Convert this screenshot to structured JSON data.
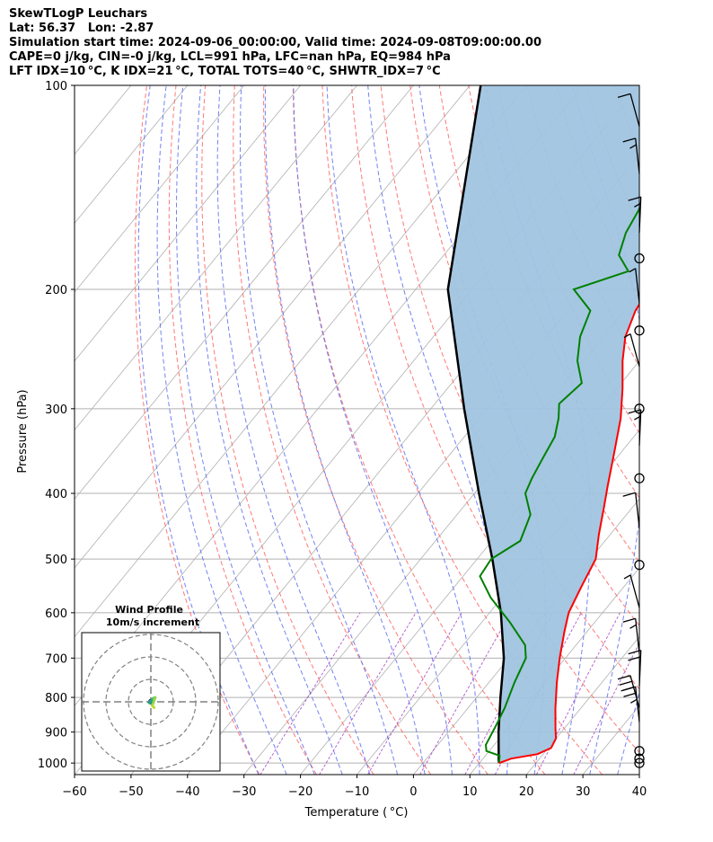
{
  "header": {
    "line1": "SkewTLogP Leuchars",
    "line2": "Lat: 56.37   Lon: -2.87",
    "line3": "Simulation start time: 2024-09-06_00:00:00, Valid time: 2024-09-08T09:00:00.00",
    "line4": "CAPE=0 j/kg, CIN=-0 j/kg, LCL=991 hPa, LFC=nan hPa, EQ=984 hPa",
    "line5": "LFT IDX=10 °C, K IDX=21 °C, TOTAL TOTS=40 °C, SHWTR_IDX=7 °C"
  },
  "chart_data": {
    "type": "line",
    "title": "SkewTLogP Leuchars",
    "xlabel": "Temperature ( °C)",
    "ylabel": "Pressure (hPa)",
    "xlim": [
      -60,
      40
    ],
    "ylim": [
      1040,
      100
    ],
    "y_scale": "log",
    "x_ticks": [
      -60,
      -50,
      -40,
      -30,
      -20,
      -10,
      0,
      10,
      20,
      30,
      40
    ],
    "y_ticks": [
      1000,
      900,
      800,
      700,
      600,
      500,
      400,
      300,
      200,
      100
    ],
    "grid": true,
    "colors": {
      "temperature": "#ff0000",
      "dewpoint": "#008000",
      "parcel": "#000000",
      "fill": "#a0c4e0",
      "dry_adiabats": "#ff6060",
      "moist_adiabats": "#5a6cf0",
      "mixing_ratio": "#9b30c0",
      "isotherms": "#b0b0b0"
    },
    "series": [
      {
        "key": "temperature",
        "points": [
          [
            13.5,
            1000
          ],
          [
            15,
            985
          ],
          [
            19,
            970
          ],
          [
            20.5,
            950
          ],
          [
            20,
            920
          ],
          [
            18.5,
            890
          ],
          [
            15.5,
            830
          ],
          [
            12,
            760
          ],
          [
            9,
            700
          ],
          [
            6,
            640
          ],
          [
            4,
            600
          ],
          [
            2.5,
            550
          ],
          [
            1,
            500
          ],
          [
            -2,
            460
          ],
          [
            -5,
            420
          ],
          [
            -7.5,
            390
          ],
          [
            -11,
            350
          ],
          [
            -15,
            310
          ],
          [
            -19,
            280
          ],
          [
            -23,
            255
          ],
          [
            -26,
            235
          ],
          [
            -28,
            215
          ],
          [
            -28.5,
            205
          ],
          [
            -28,
            200
          ],
          [
            -27.5,
            190
          ],
          [
            -25.5,
            175
          ],
          [
            -24,
            165
          ],
          [
            -22,
            155
          ],
          [
            -20,
            145
          ],
          [
            -19,
            135
          ],
          [
            -19,
            126
          ],
          [
            -19,
            117
          ],
          [
            -19.5,
            110
          ],
          [
            -19,
            105
          ],
          [
            -19.3,
            100
          ]
        ]
      },
      {
        "key": "dewpoint",
        "points": [
          [
            13.5,
            1000
          ],
          [
            12.5,
            975
          ],
          [
            9.5,
            960
          ],
          [
            8.5,
            940
          ],
          [
            8,
            910
          ],
          [
            7.5,
            880
          ],
          [
            6.5,
            830
          ],
          [
            4.5,
            760
          ],
          [
            3,
            700
          ],
          [
            1,
            670
          ],
          [
            -5,
            620
          ],
          [
            -12,
            570
          ],
          [
            -17,
            530
          ],
          [
            -17.5,
            500
          ],
          [
            -15,
            470
          ],
          [
            -17,
            430
          ],
          [
            -21,
            400
          ],
          [
            -22,
            380
          ],
          [
            -23,
            355
          ],
          [
            -24,
            330
          ],
          [
            -26,
            310
          ],
          [
            -28,
            295
          ],
          [
            -27,
            275
          ],
          [
            -31,
            255
          ],
          [
            -34,
            235
          ],
          [
            -36,
            215
          ],
          [
            -42,
            200
          ],
          [
            -35,
            188
          ],
          [
            -39,
            178
          ],
          [
            -41,
            165
          ],
          [
            -42,
            153
          ],
          [
            -43,
            145
          ],
          [
            -41.5,
            135
          ],
          [
            -40,
            125
          ],
          [
            -38.5,
            116
          ],
          [
            -37,
            108
          ],
          [
            -36,
            100
          ]
        ]
      },
      {
        "key": "parcel",
        "points": [
          [
            13.5,
            1000
          ],
          [
            13,
            990
          ],
          [
            8.9,
            900
          ],
          [
            4.2,
            800
          ],
          [
            -0.9,
            700
          ],
          [
            -8,
            600
          ],
          [
            -17.3,
            500
          ],
          [
            -29.2,
            400
          ],
          [
            -44.1,
            300
          ],
          [
            -64.3,
            200
          ],
          [
            -88.1,
            100
          ]
        ]
      }
    ],
    "wind_barbs": {
      "pressures": [
        115,
        135,
        165,
        180,
        210,
        230,
        260,
        300,
        340,
        380,
        450,
        510,
        590,
        690,
        770,
        830,
        870,
        960,
        985,
        1000
      ],
      "speeds_kt": [
        10,
        15,
        15,
        0,
        5,
        0,
        5,
        0,
        15,
        0,
        10,
        0,
        5,
        15,
        20,
        30,
        25,
        0,
        0,
        0
      ]
    },
    "wind_profile_inset": {
      "title_line1": "Wind Profile",
      "title_line2": "10m/s increment",
      "points": [
        [
          0.5,
          0.2
        ],
        [
          -0.2,
          0.4
        ],
        [
          -0.4,
          0.1
        ],
        [
          0.1,
          -0.3
        ],
        [
          0.3,
          -0.6
        ],
        [
          -0.5,
          -0.2
        ],
        [
          0.6,
          0.9
        ],
        [
          1.2,
          1.2
        ],
        [
          0.4,
          -1.0
        ],
        [
          0.9,
          -1.6
        ]
      ]
    }
  }
}
